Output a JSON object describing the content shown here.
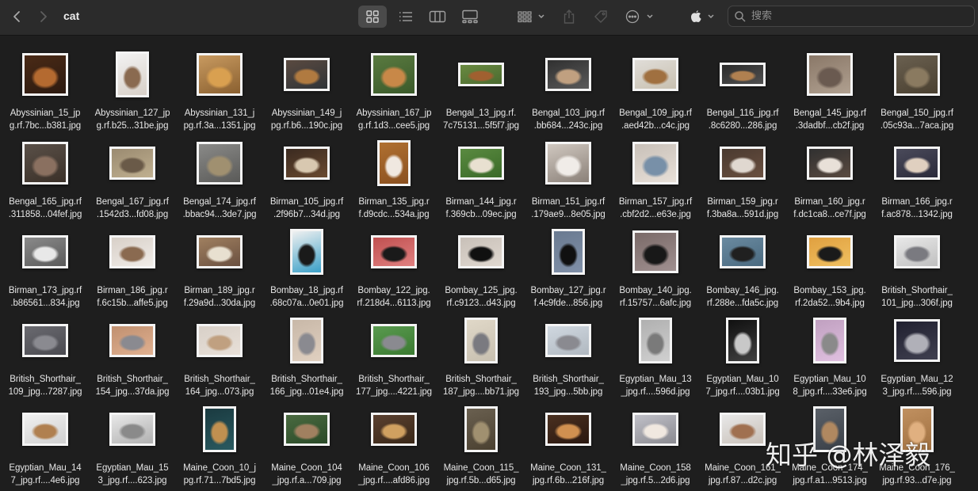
{
  "window": {
    "title": "cat"
  },
  "toolbar": {
    "back_icon": "chevron-left-icon",
    "forward_icon": "chevron-right-icon",
    "view_modes": [
      "icon-view",
      "list-view",
      "column-view",
      "gallery-view"
    ],
    "group_icon": "group-by-icon",
    "share_icon": "share-icon",
    "tag_icon": "tag-icon",
    "more_icon": "ellipsis-circle-icon",
    "app_icon": "apple-logo-icon"
  },
  "search": {
    "placeholder": "搜索",
    "value": ""
  },
  "watermark": "知乎 @林泽毅",
  "files": [
    {
      "name": "Abyssinian_15_jp\ng.rf.7bc...b381.jpg",
      "orient": "square",
      "colors": [
        "#4a2a16",
        "#b46a30",
        "#2c1a10"
      ]
    },
    {
      "name": "Abyssinian_127_jp\ng.rf.b25...31be.jpg",
      "orient": "portrait",
      "colors": [
        "#f2f2f2",
        "#8a6a50",
        "#d8d0c8"
      ]
    },
    {
      "name": "Abyssinian_131_j\npg.rf.3a...1351.jpg",
      "orient": "square",
      "colors": [
        "#c89a60",
        "#d9a050",
        "#8a6030"
      ]
    },
    {
      "name": "Abyssinian_149_j\npg.rf.b6...190c.jpg",
      "orient": "landscape",
      "colors": [
        "#5a4a40",
        "#b07a40",
        "#303438"
      ]
    },
    {
      "name": "Abyssinian_167_jp\ng.rf.1d3...cee5.jpg",
      "orient": "square",
      "colors": [
        "#5a7a40",
        "#c88848",
        "#3a5a2a"
      ]
    },
    {
      "name": "Bengal_13_jpg.rf.\n7c75131...5f5f7.jpg",
      "orient": "wide",
      "colors": [
        "#6a8a40",
        "#a06030",
        "#4a6a30"
      ]
    },
    {
      "name": "Bengal_103_jpg.rf\n.bb684...243c.jpg",
      "orient": "landscape",
      "colors": [
        "#303030",
        "#c0a080",
        "#5a5a5a"
      ]
    },
    {
      "name": "Bengal_109_jpg.rf\n.aed42b...c4c.jpg",
      "orient": "landscape",
      "colors": [
        "#e0ddd8",
        "#a07040",
        "#c8c0b0"
      ]
    },
    {
      "name": "Bengal_116_jpg.rf\n.8c6280...286.jpg",
      "orient": "wide",
      "colors": [
        "#2a2a2a",
        "#b08050",
        "#505050"
      ]
    },
    {
      "name": "Bengal_145_jpg.rf\n.3dadbf...cb2f.jpg",
      "orient": "square",
      "colors": [
        "#8a7868",
        "#6a5a50",
        "#b0a090"
      ]
    },
    {
      "name": "Bengal_150_jpg.rf\n.05c93a...7aca.jpg",
      "orient": "square",
      "colors": [
        "#6a6050",
        "#8a7a60",
        "#4a4030"
      ]
    },
    {
      "name": "Bengal_165_jpg.rf\n.311858...04fef.jpg",
      "orient": "square",
      "colors": [
        "#5a5048",
        "#8a7060",
        "#3a3028"
      ]
    },
    {
      "name": "Bengal_167_jpg.rf\n.1542d3...fd08.jpg",
      "orient": "landscape",
      "colors": [
        "#9a8a70",
        "#6a5a48",
        "#c0b090"
      ]
    },
    {
      "name": "Bengal_174_jpg.rf\n.bbac94...3de7.jpg",
      "orient": "square",
      "colors": [
        "#8a8a88",
        "#a09070",
        "#5a5a58"
      ]
    },
    {
      "name": "Birman_105_jpg.rf\n.2f96b7...34d.jpg",
      "orient": "landscape",
      "colors": [
        "#3a2a20",
        "#d8c8b0",
        "#6a4a30"
      ]
    },
    {
      "name": "Birman_135_jpg.r\nf.d9cdc...534a.jpg",
      "orient": "portrait",
      "colors": [
        "#b07030",
        "#f0e8e0",
        "#8a5020"
      ]
    },
    {
      "name": "Birman_144_jpg.r\nf.369cb...09ec.jpg",
      "orient": "landscape",
      "colors": [
        "#5a8a40",
        "#e8e0d0",
        "#3a6a28"
      ]
    },
    {
      "name": "Birman_151_jpg.rf\n.179ae9...8e05.jpg",
      "orient": "square",
      "colors": [
        "#d0c8c0",
        "#f0ece8",
        "#8a8078"
      ]
    },
    {
      "name": "Birman_157_jpg.rf\n.cbf2d2...e63e.jpg",
      "orient": "square",
      "colors": [
        "#c8c0b8",
        "#7890a8",
        "#e8e0d8"
      ]
    },
    {
      "name": "Birman_159_jpg.r\nf.3ba8a...591d.jpg",
      "orient": "landscape",
      "colors": [
        "#4a3a30",
        "#e0d8d0",
        "#6a5040"
      ]
    },
    {
      "name": "Birman_160_jpg.r\nf.dc1ca8...ce7f.jpg",
      "orient": "landscape",
      "colors": [
        "#303030",
        "#e8e0d8",
        "#5a4a40"
      ]
    },
    {
      "name": "Birman_166_jpg.r\nf.ac878...1342.jpg",
      "orient": "landscape",
      "colors": [
        "#4a4a5a",
        "#e0d0c0",
        "#2a2a3a"
      ]
    },
    {
      "name": "Birman_173_jpg.rf\n.b86561...834.jpg",
      "orient": "landscape",
      "colors": [
        "#8a8a8a",
        "#e8e8e8",
        "#5a5a5a"
      ]
    },
    {
      "name": "Birman_186_jpg.r\nf.6c15b...affe5.jpg",
      "orient": "landscape",
      "colors": [
        "#d8d0c8",
        "#8a6a50",
        "#f0ece8"
      ]
    },
    {
      "name": "Birman_189_jpg.r\nf.29a9d...30da.jpg",
      "orient": "landscape",
      "colors": [
        "#a08060",
        "#e8e0d0",
        "#6a5040"
      ]
    },
    {
      "name": "Bombay_18_jpg.rf\n.68c07a...0e01.jpg",
      "orient": "portrait",
      "colors": [
        "#f0f0f0",
        "#1a1a1a",
        "#3aa0c8"
      ]
    },
    {
      "name": "Bombay_122_jpg.\nrf.218d4...6113.jpg",
      "orient": "landscape",
      "colors": [
        "#c05050",
        "#1a1a1a",
        "#e08080"
      ]
    },
    {
      "name": "Bombay_125_jpg.\nrf.c9123...d43.jpg",
      "orient": "landscape",
      "colors": [
        "#c8c0b8",
        "#101010",
        "#e0d8d0"
      ]
    },
    {
      "name": "Bombay_127_jpg.r\nf.4c9fde...856.jpg",
      "orient": "portrait",
      "colors": [
        "#6a7a90",
        "#101010",
        "#8090a8"
      ]
    },
    {
      "name": "Bombay_140_jpg.\nrf.15757...6afc.jpg",
      "orient": "square",
      "colors": [
        "#7a6a68",
        "#181818",
        "#a09090"
      ]
    },
    {
      "name": "Bombay_146_jpg.\nrf.288e...fda5c.jpg",
      "orient": "landscape",
      "colors": [
        "#6a8aa0",
        "#202020",
        "#4a6a80"
      ]
    },
    {
      "name": "Bombay_153_jpg.\nrf.2da52...9b4.jpg",
      "orient": "landscape",
      "colors": [
        "#e0a040",
        "#1a1a1a",
        "#f0c060"
      ]
    },
    {
      "name": "British_Shorthair_\n101_jpg...306f.jpg",
      "orient": "landscape",
      "colors": [
        "#e8e8e8",
        "#7a7a80",
        "#c0c0c0"
      ]
    },
    {
      "name": "British_Shorthair_\n109_jpg...7287.jpg",
      "orient": "landscape",
      "colors": [
        "#6a6a70",
        "#8a8a90",
        "#4a4a50"
      ]
    },
    {
      "name": "British_Shorthair_\n154_jpg...37da.jpg",
      "orient": "landscape",
      "colors": [
        "#c09070",
        "#8a8a90",
        "#e0b090"
      ]
    },
    {
      "name": "British_Shorthair_\n164_jpg...073.jpg",
      "orient": "landscape",
      "colors": [
        "#d8d0c8",
        "#c0a080",
        "#e8e0d8"
      ]
    },
    {
      "name": "British_Shorthair_\n166_jpg...01e4.jpg",
      "orient": "portrait",
      "colors": [
        "#c8b8a8",
        "#8a8a90",
        "#e0d0c0"
      ]
    },
    {
      "name": "British_Shorthair_\n177_jpg....4221.jpg",
      "orient": "landscape",
      "colors": [
        "#5a9a50",
        "#8a8a90",
        "#3a7a30"
      ]
    },
    {
      "name": "British_Shorthair_\n187_jpg....bb71.jpg",
      "orient": "portrait",
      "colors": [
        "#e0d8c8",
        "#7a7a80",
        "#c8c0b0"
      ]
    },
    {
      "name": "British_Shorthair_\n193_jpg...5bb.jpg",
      "orient": "landscape",
      "colors": [
        "#d0d8e0",
        "#8a8a90",
        "#b0b8c0"
      ]
    },
    {
      "name": "Egyptian_Mau_13\n_jpg.rf....596d.jpg",
      "orient": "portrait",
      "colors": [
        "#b0b0b0",
        "#7a7a7a",
        "#d0d0d0"
      ]
    },
    {
      "name": "Egyptian_Mau_10\n7_jpg.rf....03b1.jpg",
      "orient": "portrait",
      "colors": [
        "#101010",
        "#c8c8c8",
        "#404040"
      ]
    },
    {
      "name": "Egyptian_Mau_10\n8_jpg.rf....33e6.jpg",
      "orient": "portrait",
      "colors": [
        "#c0a0c0",
        "#8a8a8a",
        "#e0c0e0"
      ]
    },
    {
      "name": "Egyptian_Mau_12\n3_jpg.rf....596.jpg",
      "orient": "square",
      "colors": [
        "#202030",
        "#b0b0b8",
        "#404050"
      ]
    },
    {
      "name": "Egyptian_Mau_14\n7_jpg.rf....4e6.jpg",
      "orient": "landscape",
      "colors": [
        "#f0f0f0",
        "#b08050",
        "#d0d0d0"
      ]
    },
    {
      "name": "Egyptian_Mau_15\n3_jpg.rf....623.jpg",
      "orient": "landscape",
      "colors": [
        "#e8e8e8",
        "#8a8a8a",
        "#b0b0b0"
      ]
    },
    {
      "name": "Maine_Coon_10_j\npg.rf.71...7bd5.jpg",
      "orient": "portrait",
      "colors": [
        "#1a3a40",
        "#c09050",
        "#2a5a60"
      ]
    },
    {
      "name": "Maine_Coon_104\n_jpg.rf.a...709.jpg",
      "orient": "landscape",
      "colors": [
        "#4a6a40",
        "#a08060",
        "#2a4a28"
      ]
    },
    {
      "name": "Maine_Coon_106\n_jpg.rf....afd86.jpg",
      "orient": "landscape",
      "colors": [
        "#5a4030",
        "#d0a060",
        "#3a2818"
      ]
    },
    {
      "name": "Maine_Coon_115_\njpg.rf.5b...d65.jpg",
      "orient": "portrait",
      "colors": [
        "#6a6050",
        "#a09070",
        "#4a4030"
      ]
    },
    {
      "name": "Maine_Coon_131_\njpg.rf.6b...216f.jpg",
      "orient": "landscape",
      "colors": [
        "#4a3020",
        "#d09050",
        "#2a1810"
      ]
    },
    {
      "name": "Maine_Coon_158\n_jpg.rf.5...2d6.jpg",
      "orient": "landscape",
      "colors": [
        "#c0c0c8",
        "#f0e8e0",
        "#8a8a90"
      ]
    },
    {
      "name": "Maine_Coon_161_\njpg.rf.87...d2c.jpg",
      "orient": "landscape",
      "colors": [
        "#e8e8e8",
        "#a07050",
        "#c8c0b8"
      ]
    },
    {
      "name": "Maine_Coon_174_\njpg.rf.a1...9513.jpg",
      "orient": "portrait",
      "colors": [
        "#5a6068",
        "#b08860",
        "#3a4048"
      ]
    },
    {
      "name": "Maine_Coon_176_\njpg.rf.93...d7e.jpg",
      "orient": "portrait",
      "colors": [
        "#c09060",
        "#e0b080",
        "#a07040"
      ]
    }
  ]
}
